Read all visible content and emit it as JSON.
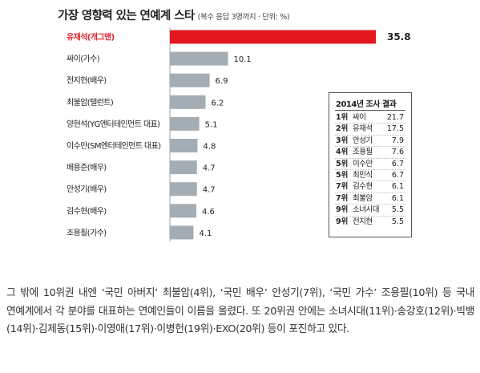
{
  "chart_data": {
    "type": "bar",
    "orientation": "horizontal",
    "title": "가장 영향력 있는 연예계 스타",
    "subtitle": "(복수 응답 3명까지 · 단위: %)",
    "categories": [
      "유재석(개그맨)",
      "싸이(가수)",
      "전지현(배우)",
      "최불암(탤런트)",
      "양현석(YG엔터테인먼트 대표)",
      "이수만(SM엔터테인먼트 대표)",
      "배용준(배우)",
      "안성기(배우)",
      "김수현(배우)",
      "조용필(가수)"
    ],
    "values": [
      35.8,
      10.1,
      6.9,
      6.2,
      5.1,
      4.8,
      4.7,
      4.7,
      4.6,
      4.1
    ],
    "value_labels": [
      "35.8",
      "10.1",
      "6.9",
      "6.2",
      "5.1",
      "4.8",
      "4.7",
      "4.7",
      "4.6",
      "4.1"
    ],
    "highlight_index": 0,
    "colors": {
      "highlight": "#e3181f",
      "bar": "#a3adb3",
      "axis": "#9aa4aa"
    }
  },
  "inset_table": {
    "title": "2014년 조사 결과",
    "rows": [
      {
        "rank": "1위",
        "name": "싸이",
        "value": "21.7"
      },
      {
        "rank": "2위",
        "name": "유재석",
        "value": "17.5"
      },
      {
        "rank": "3위",
        "name": "안성기",
        "value": "7.9"
      },
      {
        "rank": "4위",
        "name": "조용필",
        "value": "7.6"
      },
      {
        "rank": "5위",
        "name": "이수만",
        "value": "6.7"
      },
      {
        "rank": "5위",
        "name": "최민식",
        "value": "6.7"
      },
      {
        "rank": "7위",
        "name": "김수현",
        "value": "6.1"
      },
      {
        "rank": "7위",
        "name": "최불암",
        "value": "6.1"
      },
      {
        "rank": "9위",
        "name": "소녀시대",
        "value": "5.5"
      },
      {
        "rank": "9위",
        "name": "전지현",
        "value": "5.5"
      }
    ]
  },
  "body_text": "그 밖에 10위권 내엔 ‘국민 아버지’ 최불암(4위), ‘국민 배우’ 안성기(7위), ‘국민 가수’ 조용필(10위) 등 국내 연예계에서 각 분야를 대표하는 연예인들이 이름을 올렸다. 또 20위권 안에는 소녀시대(11위)·송강호(12위)·빅뱅(14위)·김제동(15위)·이영애(17위)·이병헌(19위)·EXO(20위) 등이 포진하고 있다."
}
